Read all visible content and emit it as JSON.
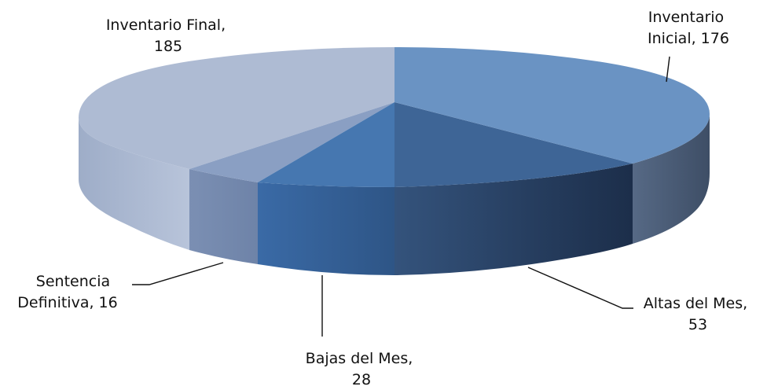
{
  "chart_data": {
    "type": "pie",
    "style": "3d",
    "legend": "none",
    "series": [
      {
        "label_line1": "Inventario",
        "label_line2": "Inicial, 176",
        "category": "Inventario Inicial",
        "value": 176,
        "color": "#6A93C3"
      },
      {
        "label_line1": "Altas del Mes,",
        "label_line2": "53",
        "category": "Altas del Mes",
        "value": 53,
        "color": "#3E6596"
      },
      {
        "label_line1": "Bajas del Mes,",
        "label_line2": "28",
        "category": "Bajas del Mes",
        "value": 28,
        "color": "#4677B0"
      },
      {
        "label_line1": "Sentencia",
        "label_line2": "Definitiva, 16",
        "category": "Sentencia Definitiva",
        "value": 16,
        "color": "#8A9FC3"
      },
      {
        "label_line1": "Inventario Final,",
        "label_line2": "185",
        "category": "Inventario Final",
        "value": 185,
        "color": "#AEBBD3"
      }
    ]
  }
}
